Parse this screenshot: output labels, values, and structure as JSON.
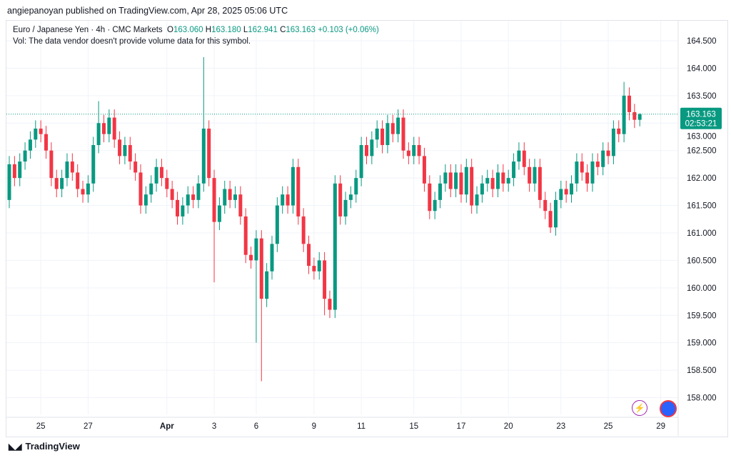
{
  "publisher": "angiepanoyan published on TradingView.com, Apr 28, 2025 05:06 UTC",
  "legend": {
    "symbol": "Euro / Japanese Yen · 4h · CMC Markets",
    "o_label": "O",
    "o": "163.060",
    "h_label": "H",
    "h": "163.180",
    "l_label": "L",
    "l": "162.941",
    "c_label": "C",
    "c": "163.163",
    "change": "+0.103 (+0.06%)",
    "vol": "Vol: The data vendor doesn't provide volume data for this symbol."
  },
  "current": {
    "price": "163.163",
    "countdown": "02:53:21",
    "value": 163.163
  },
  "footer": {
    "brand": "TradingView"
  },
  "colors": {
    "up": "#089981",
    "down": "#f23645"
  },
  "chart_data": {
    "type": "candlestick",
    "title": "Euro / Japanese Yen · 4h",
    "ylim": [
      157.7,
      164.8
    ],
    "yticks": [
      "164.500",
      "164.000",
      "163.500",
      "163.000",
      "162.500",
      "162.000",
      "161.500",
      "161.000",
      "160.500",
      "160.000",
      "159.500",
      "159.000",
      "158.500",
      "158.000"
    ],
    "xticks": [
      {
        "label": "25",
        "i": 6
      },
      {
        "label": "27",
        "i": 15
      },
      {
        "label": "Apr",
        "i": 30
      },
      {
        "label": "3",
        "i": 39
      },
      {
        "label": "6",
        "i": 47
      },
      {
        "label": "9",
        "i": 58
      },
      {
        "label": "11",
        "i": 67
      },
      {
        "label": "15",
        "i": 77
      },
      {
        "label": "17",
        "i": 86
      },
      {
        "label": "20",
        "i": 95
      },
      {
        "label": "23",
        "i": 105
      },
      {
        "label": "25",
        "i": 114
      },
      {
        "label": "29",
        "i": 124
      }
    ],
    "first_open": 161.6,
    "closes": [
      162.25,
      162.0,
      162.3,
      162.5,
      162.7,
      162.9,
      162.8,
      162.5,
      162.0,
      161.8,
      162.0,
      162.3,
      162.1,
      161.8,
      161.7,
      161.9,
      162.6,
      163.0,
      162.8,
      163.1,
      162.7,
      162.4,
      162.6,
      162.3,
      162.1,
      161.5,
      161.7,
      161.9,
      162.2,
      162.0,
      161.8,
      161.6,
      161.3,
      161.5,
      161.7,
      161.6,
      161.9,
      162.9,
      162.0,
      161.2,
      161.5,
      161.8,
      161.6,
      161.7,
      161.3,
      160.6,
      160.5,
      160.9,
      159.8,
      160.3,
      160.8,
      161.5,
      161.7,
      161.5,
      162.2,
      161.3,
      160.8,
      160.4,
      160.3,
      160.5,
      159.8,
      159.6,
      161.9,
      161.3,
      161.6,
      161.7,
      162.0,
      162.6,
      162.4,
      162.7,
      162.9,
      162.6,
      163.0,
      162.8,
      163.1,
      162.5,
      162.4,
      162.6,
      162.4,
      161.9,
      161.4,
      161.6,
      161.9,
      162.1,
      161.8,
      162.1,
      161.7,
      162.2,
      161.5,
      161.7,
      161.9,
      162.0,
      161.8,
      162.1,
      161.9,
      162.0,
      162.3,
      162.5,
      162.2,
      161.9,
      162.2,
      161.6,
      161.4,
      161.1,
      161.6,
      161.8,
      161.7,
      161.9,
      162.3,
      162.1,
      161.9,
      162.3,
      162.2,
      162.5,
      162.4,
      162.9,
      162.8,
      163.5,
      163.2,
      163.06,
      163.163
    ],
    "wick_overrides": {
      "17": {
        "h": 163.4
      },
      "37": {
        "h": 164.2
      },
      "39": {
        "l": 160.1
      },
      "48": {
        "l": 158.3
      },
      "47": {
        "l": 159.0
      },
      "60": {
        "l": 159.5
      },
      "117": {
        "h": 163.75
      },
      "103": {
        "l": 161.0
      },
      "120": {
        "h": 163.18,
        "l": 162.941
      }
    }
  }
}
